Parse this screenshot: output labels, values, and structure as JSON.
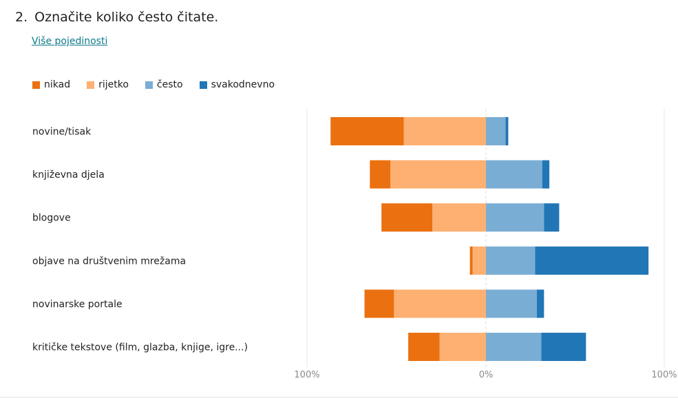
{
  "question": {
    "number": "2.",
    "title": "Označite koliko često čitate.",
    "details_link": "Više pojedinosti"
  },
  "chart_data": {
    "type": "bar",
    "stacked": true,
    "diverging": true,
    "categories": [
      "novine/tisak",
      "književna djela",
      "blogove",
      "objave na društvenim mrežama",
      "novinarske portale",
      "kritičke tekstove (film, glazba, knjige, igre...)"
    ],
    "series": [
      {
        "name": "nikad",
        "color": "#eb7010",
        "side": "negative",
        "values": [
          41,
          11.5,
          28.5,
          1.5,
          16.5,
          17.5
        ]
      },
      {
        "name": "rijetko",
        "color": "#fdb071",
        "side": "negative",
        "values": [
          46,
          53.5,
          30,
          7.5,
          51.5,
          26
        ]
      },
      {
        "name": "često",
        "color": "#7aadd4",
        "side": "positive",
        "values": [
          11,
          31.5,
          32.5,
          27.5,
          28.5,
          31
        ]
      },
      {
        "name": "svakodnevno",
        "color": "#2176b6",
        "side": "positive",
        "values": [
          1.5,
          4,
          8.5,
          63.5,
          4,
          25
        ]
      }
    ],
    "x_ticks": [
      "100%",
      "0%",
      "100%"
    ],
    "xlim": [
      -100,
      100
    ],
    "legend_position": "top-left",
    "grid": true
  }
}
